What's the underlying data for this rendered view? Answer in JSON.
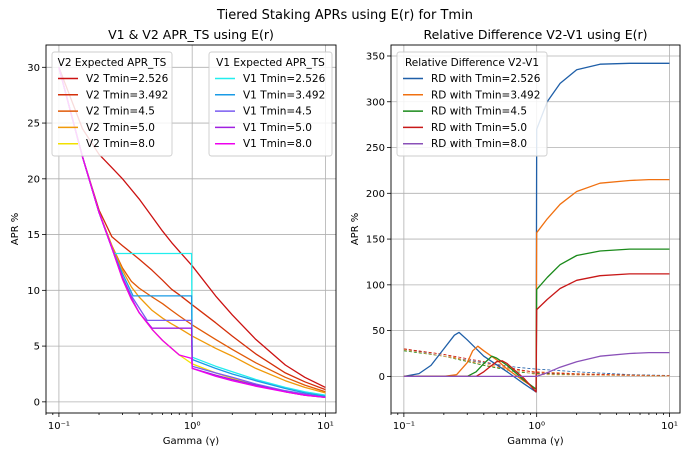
{
  "suptitle": "Tiered Staking APRs using E(r) for Tmin",
  "chart_data": [
    {
      "type": "line",
      "title": "V1 & V2 APR_TS using E(r)",
      "xlabel": "Gamma (γ)",
      "ylabel": "APR %",
      "xscale": "log",
      "xlim": [
        0.08,
        12
      ],
      "ylim": [
        -1,
        32
      ],
      "xticks": [
        "10⁻¹",
        "10⁰",
        "10¹"
      ],
      "yticks": [
        "0",
        "5",
        "10",
        "15",
        "20",
        "25",
        "30"
      ],
      "grid": true,
      "legends": [
        {
          "title": "V2 Expected APR_TS",
          "placement": "upper-left",
          "series": [
            {
              "name": "V2 Tmin=2.526",
              "color": "#cc1111",
              "x": [
                0.1,
                0.15,
                0.2,
                0.25,
                0.3,
                0.4,
                0.5,
                0.6,
                0.7,
                0.8,
                1.0,
                1.5,
                2,
                3,
                5,
                7,
                10
              ],
              "y": [
                30,
                24.5,
                22.2,
                21.0,
                20.0,
                18.2,
                16.6,
                15.3,
                14.3,
                13.5,
                12.2,
                9.5,
                7.8,
                5.6,
                3.3,
                2.2,
                1.3
              ]
            },
            {
              "name": "V2 Tmin=3.492",
              "color": "#d42f0a",
              "x": [
                0.1,
                0.15,
                0.2,
                0.25,
                0.3,
                0.4,
                0.5,
                0.6,
                0.7,
                0.8,
                1.0,
                1.5,
                2,
                3,
                5,
                7,
                10
              ],
              "y": [
                30,
                22.0,
                17.2,
                14.8,
                14.0,
                12.8,
                11.8,
                10.9,
                10.1,
                9.6,
                8.7,
                7.1,
                5.9,
                4.3,
                2.6,
                1.8,
                1.1
              ]
            },
            {
              "name": "V2 Tmin=4.5",
              "color": "#e15a08",
              "x": [
                0.1,
                0.15,
                0.2,
                0.25,
                0.3,
                0.35,
                0.4,
                0.5,
                0.6,
                0.7,
                0.8,
                1.0,
                1.5,
                2,
                3,
                5,
                7,
                10
              ],
              "y": [
                30,
                22.0,
                17.0,
                14.0,
                12.0,
                10.8,
                10.2,
                9.4,
                8.8,
                8.2,
                7.7,
                6.9,
                5.6,
                4.7,
                3.5,
                2.2,
                1.5,
                0.9
              ]
            },
            {
              "name": "V2 Tmin=5.0",
              "color": "#f09a0a",
              "x": [
                0.1,
                0.15,
                0.2,
                0.25,
                0.3,
                0.35,
                0.4,
                0.5,
                0.6,
                0.7,
                0.8,
                1.0,
                1.5,
                2,
                3,
                5,
                7,
                10
              ],
              "y": [
                30,
                22.0,
                17.0,
                14.0,
                11.8,
                10.3,
                9.4,
                8.2,
                7.5,
                7.0,
                6.6,
                5.9,
                4.8,
                4.1,
                3.0,
                1.9,
                1.3,
                0.8
              ]
            },
            {
              "name": "V2 Tmin=8.0",
              "color": "#f2e000",
              "x": [
                0.1,
                0.15,
                0.2,
                0.25,
                0.3,
                0.35,
                0.4,
                0.5,
                0.6,
                0.7,
                0.8,
                1.0,
                1.5,
                2,
                3,
                5,
                7,
                10
              ],
              "y": [
                30,
                22.0,
                17.0,
                13.8,
                11.0,
                9.2,
                8.0,
                6.5,
                5.5,
                4.8,
                4.2,
                3.4,
                2.6,
                2.1,
                1.5,
                0.9,
                0.6,
                0.4
              ]
            }
          ]
        },
        {
          "title": "V1 Expected APR_TS",
          "placement": "upper-right",
          "series": [
            {
              "name": "V1 Tmin=2.526",
              "color": "#22eeee",
              "x": [
                0.1,
                0.15,
                0.2,
                0.25,
                0.26,
                0.4,
                0.6,
                0.8,
                0.99,
                1.0,
                1.5,
                2,
                3,
                5,
                7,
                10
              ],
              "y": [
                30,
                22.0,
                17.0,
                13.8,
                13.3,
                13.3,
                13.3,
                13.3,
                13.3,
                4.0,
                3.2,
                2.7,
                2.0,
                1.3,
                0.9,
                0.6
              ]
            },
            {
              "name": "V1 Tmin=3.492",
              "color": "#1a9be6",
              "x": [
                0.1,
                0.15,
                0.2,
                0.25,
                0.3,
                0.36,
                0.5,
                0.7,
                0.99,
                1.0,
                1.5,
                2,
                3,
                5,
                7,
                10
              ],
              "y": [
                30,
                22.0,
                17.0,
                13.8,
                11.5,
                9.5,
                9.5,
                9.5,
                9.5,
                3.8,
                3.0,
                2.5,
                1.9,
                1.2,
                0.8,
                0.5
              ]
            },
            {
              "name": "V1 Tmin=4.5",
              "color": "#7a5cf0",
              "x": [
                0.1,
                0.15,
                0.2,
                0.25,
                0.3,
                0.35,
                0.46,
                0.6,
                0.8,
                0.99,
                1.0,
                1.5,
                2,
                3,
                5,
                7,
                10
              ],
              "y": [
                30,
                22.0,
                17.0,
                13.8,
                11.2,
                9.5,
                7.3,
                7.3,
                7.3,
                7.3,
                3.2,
                2.6,
                2.2,
                1.6,
                1.0,
                0.7,
                0.4
              ]
            },
            {
              "name": "V1 Tmin=5.0",
              "color": "#a020e0",
              "x": [
                0.1,
                0.15,
                0.2,
                0.25,
                0.3,
                0.35,
                0.4,
                0.5,
                0.6,
                0.8,
                0.99,
                1.0,
                1.5,
                2,
                3,
                5,
                7,
                10
              ],
              "y": [
                30,
                22.0,
                17.0,
                13.8,
                11.1,
                9.3,
                8.0,
                6.6,
                6.6,
                6.6,
                6.6,
                3.0,
                2.4,
                2.0,
                1.5,
                0.9,
                0.6,
                0.4
              ]
            },
            {
              "name": "V1 Tmin=8.0",
              "color": "#ee00ee",
              "x": [
                0.1,
                0.15,
                0.2,
                0.25,
                0.3,
                0.35,
                0.4,
                0.5,
                0.6,
                0.7,
                0.8,
                0.99,
                1.0,
                1.5,
                2,
                3,
                5,
                7,
                10
              ],
              "y": [
                30,
                22.0,
                17.0,
                13.8,
                11.0,
                9.2,
                8.0,
                6.5,
                5.5,
                4.8,
                4.2,
                3.9,
                3.0,
                2.3,
                1.9,
                1.4,
                0.9,
                0.6,
                0.4
              ]
            }
          ]
        }
      ]
    },
    {
      "type": "line",
      "title": "Relative Difference V2-V1 using E(r)",
      "xlabel": "Gamma (γ)",
      "ylabel": "APR %",
      "xscale": "log",
      "xlim": [
        0.08,
        12
      ],
      "ylim": [
        -40,
        362
      ],
      "xticks": [
        "10⁻¹",
        "10⁰",
        "10¹"
      ],
      "yticks": [
        "0",
        "50",
        "100",
        "150",
        "200",
        "250",
        "300",
        "350"
      ],
      "grid": true,
      "legends": [
        {
          "title": "Relative Difference V2-V1",
          "placement": "upper-left",
          "series": [
            {
              "name": "RD with Tmin=2.526",
              "color": "#1f5fa8",
              "x": [
                0.1,
                0.13,
                0.16,
                0.2,
                0.24,
                0.26,
                0.3,
                0.4,
                0.6,
                0.8,
                0.99,
                1.0,
                1.2,
                1.5,
                2,
                3,
                5,
                7,
                10
              ],
              "y": [
                0,
                3,
                12,
                30,
                45,
                48,
                40,
                22,
                5,
                -8,
                -17,
                270,
                300,
                320,
                335,
                341,
                342,
                342,
                342
              ]
            },
            {
              "name": "RD with Tmin=3.492",
              "color": "#f07010",
              "x": [
                0.1,
                0.2,
                0.25,
                0.3,
                0.33,
                0.36,
                0.4,
                0.5,
                0.6,
                0.8,
                0.99,
                1.0,
                1.2,
                1.5,
                2,
                3,
                5,
                7,
                10
              ],
              "y": [
                0,
                0,
                2,
                15,
                28,
                33,
                28,
                18,
                8,
                -5,
                -14,
                157,
                172,
                188,
                202,
                211,
                214,
                215,
                215
              ]
            },
            {
              "name": "RD with Tmin=4.5",
              "color": "#1a8a1a",
              "x": [
                0.1,
                0.3,
                0.35,
                0.4,
                0.46,
                0.5,
                0.6,
                0.8,
                0.99,
                1.0,
                1.2,
                1.5,
                2,
                3,
                5,
                7,
                10
              ],
              "y": [
                0,
                0,
                5,
                14,
                22,
                20,
                12,
                -4,
                -14,
                95,
                108,
                122,
                132,
                137,
                139,
                139,
                139
              ]
            },
            {
              "name": "RD with Tmin=5.0",
              "color": "#c81818",
              "x": [
                0.1,
                0.35,
                0.4,
                0.45,
                0.5,
                0.55,
                0.6,
                0.8,
                0.99,
                1.0,
                1.2,
                1.5,
                2,
                3,
                5,
                7,
                10
              ],
              "y": [
                0,
                0,
                5,
                11,
                16,
                17,
                14,
                -2,
                -17,
                73,
                84,
                96,
                105,
                110,
                112,
                112,
                112
              ]
            },
            {
              "name": "RD with Tmin=8.0",
              "color": "#8a50b8",
              "x": [
                0.1,
                0.99,
                1.0,
                1.2,
                1.5,
                2,
                3,
                5,
                7,
                10
              ],
              "y": [
                0,
                0,
                0,
                4,
                10,
                16,
                22,
                25,
                26,
                26
              ]
            }
          ]
        }
      ],
      "dashed_series": [
        {
          "color": "#1f5fa8",
          "x": [
            0.1,
            0.2,
            0.4,
            0.7,
            0.99,
            1.0,
            2,
            5,
            10
          ],
          "y": [
            30,
            22,
            15,
            10,
            8,
            8,
            5,
            2,
            1
          ]
        },
        {
          "color": "#f07010",
          "x": [
            0.1,
            0.2,
            0.4,
            0.7,
            0.99,
            1.0,
            2,
            5,
            10
          ],
          "y": [
            30,
            24,
            12,
            7,
            5,
            5,
            3,
            1.5,
            0.8
          ]
        },
        {
          "color": "#1a8a1a",
          "x": [
            0.1,
            0.2,
            0.4,
            0.7,
            0.99,
            1.0,
            2,
            5,
            10
          ],
          "y": [
            28,
            22,
            12,
            5,
            3,
            3,
            2,
            1,
            0.5
          ]
        },
        {
          "color": "#c81818",
          "x": [
            0.1,
            0.2,
            0.4,
            0.7,
            0.99,
            1.0,
            2,
            5,
            10
          ],
          "y": [
            30,
            24,
            16,
            8,
            4,
            4,
            2.5,
            1.2,
            0.6
          ]
        },
        {
          "color": "#f2a050",
          "x": [
            0.1,
            0.2,
            0.4,
            0.7,
            0.99,
            1.0,
            2,
            5,
            10
          ],
          "y": [
            29,
            22,
            14,
            7,
            2,
            2,
            1.5,
            0.8,
            0.3
          ]
        }
      ]
    }
  ]
}
